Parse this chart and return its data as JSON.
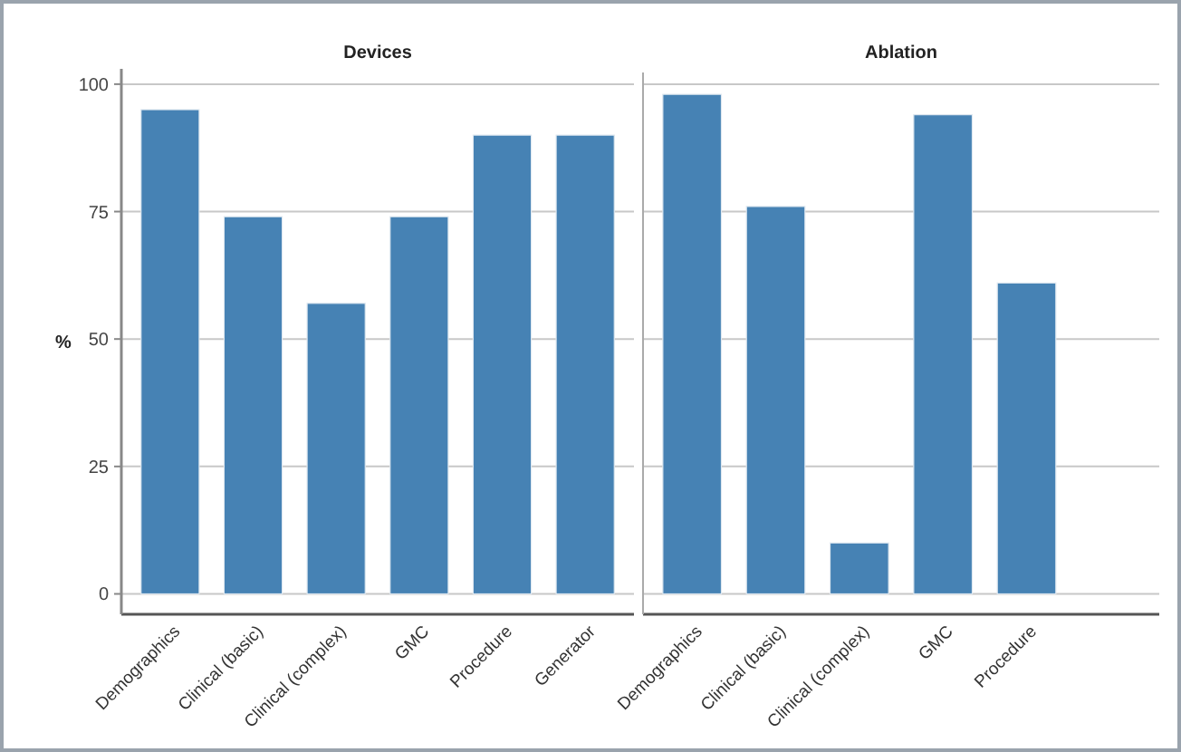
{
  "chart_data": [
    {
      "type": "bar",
      "title": "Devices",
      "ylabel": "%",
      "categories": [
        "Demographics",
        "Clinical (basic)",
        "Clinical (complex)",
        "GMC",
        "Procedure",
        "Generator"
      ],
      "values": [
        95,
        74,
        57,
        74,
        90,
        90
      ],
      "color": "#4682b4",
      "ylim": [
        -4,
        103
      ],
      "yticks": [
        0,
        25,
        50,
        75,
        100
      ],
      "grid": "y"
    },
    {
      "type": "bar",
      "title": "Ablation",
      "categories": [
        "Demographics",
        "Clinical (basic)",
        "Clinical (complex)",
        "GMC",
        "Procedure",
        null
      ],
      "values": [
        98,
        76,
        10,
        94,
        61,
        null
      ],
      "color": "#4682b4",
      "ylim": [
        -4,
        103
      ],
      "yticks": [
        0,
        25,
        50,
        75,
        100
      ],
      "grid": "y",
      "tick_labels": "x"
    }
  ]
}
